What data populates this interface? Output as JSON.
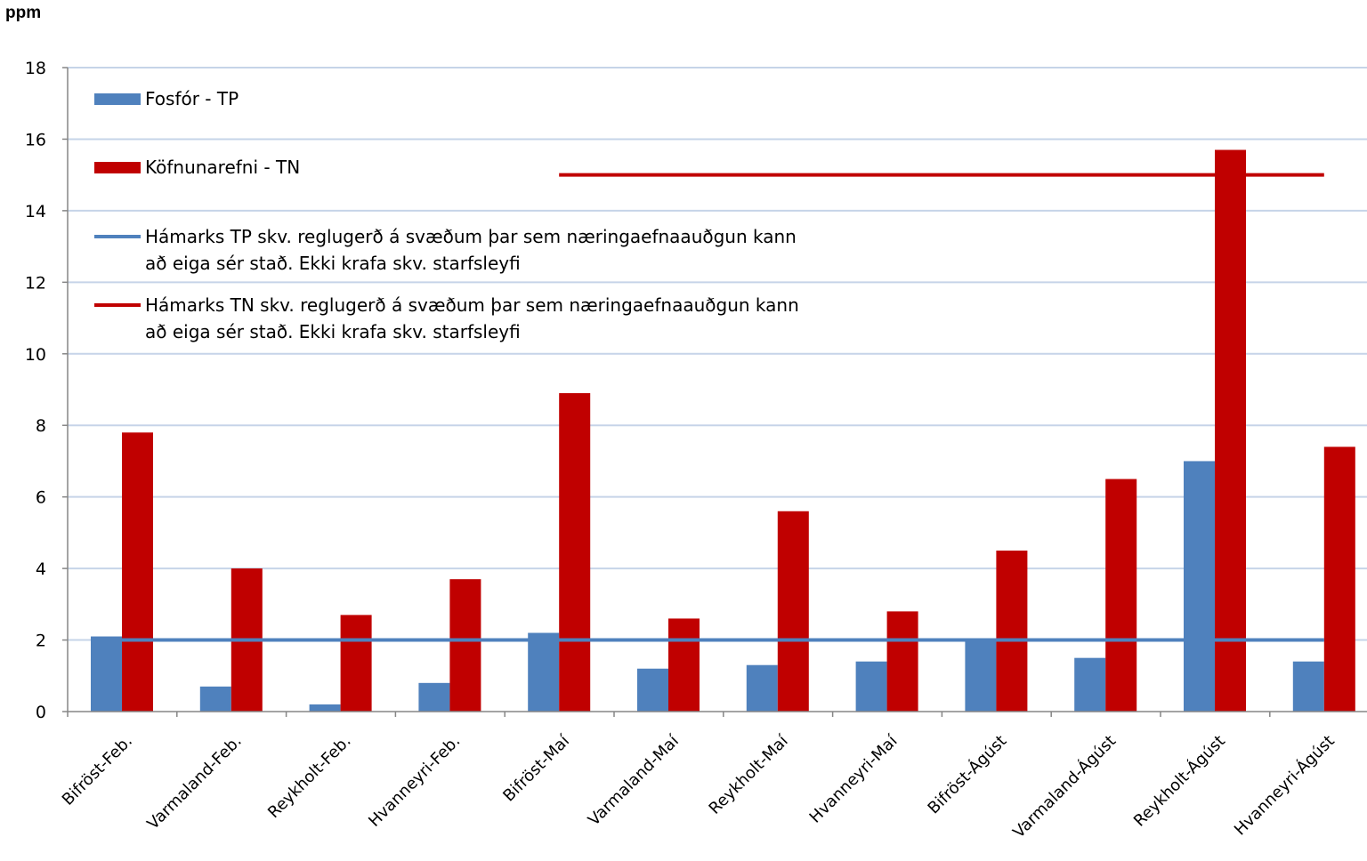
{
  "chart_data": {
    "type": "bar",
    "ylabel": "ppm",
    "ylim": [
      0,
      18
    ],
    "yticks": [
      0,
      2,
      4,
      6,
      8,
      10,
      12,
      14,
      16,
      18
    ],
    "grid": true,
    "legend_position": "top-left",
    "categories": [
      "Bifröst-Feb.",
      "Varmaland-Feb.",
      "Reykholt-Feb.",
      "Hvanneyri-Feb.",
      "Bifröst-Maí",
      "Varmaland-Maí",
      "Reykholt-Maí",
      "Hvanneyri-Maí",
      "Bifröst-Ágúst",
      "Varmaland-Ágúst",
      "Reykholt-Ágúst",
      "Hvanneyri-Ágúst"
    ],
    "series": [
      {
        "name": "Fosfór - TP",
        "color": "#4f81bd",
        "values": [
          2.1,
          0.7,
          0.2,
          0.8,
          2.2,
          1.2,
          1.3,
          1.4,
          2.0,
          1.5,
          7.0,
          1.4
        ]
      },
      {
        "name": "Köfnunarefni - TN",
        "color": "#c00000",
        "values": [
          7.8,
          4.0,
          2.7,
          3.7,
          8.9,
          2.6,
          5.6,
          2.8,
          4.5,
          6.5,
          15.7,
          7.4
        ]
      }
    ],
    "reference_lines": [
      {
        "name_line1": "Hámarks TP skv. reglugerð á svæðum þar sem næringaefnaauðgun kann",
        "name_line2": "að eiga sér stað. Ekki krafa skv. starfsleyfi",
        "value": 2,
        "from_category": 0,
        "to_category": 11,
        "color": "#4f81bd"
      },
      {
        "name_line1": "Hámarks TN skv. reglugerð á svæðum þar sem næringaefnaauðgun kann",
        "name_line2": "að eiga sér stað. Ekki krafa skv. starfsleyfi",
        "value": 15,
        "from_category": 4,
        "to_category": 11,
        "color": "#c00000"
      }
    ]
  }
}
